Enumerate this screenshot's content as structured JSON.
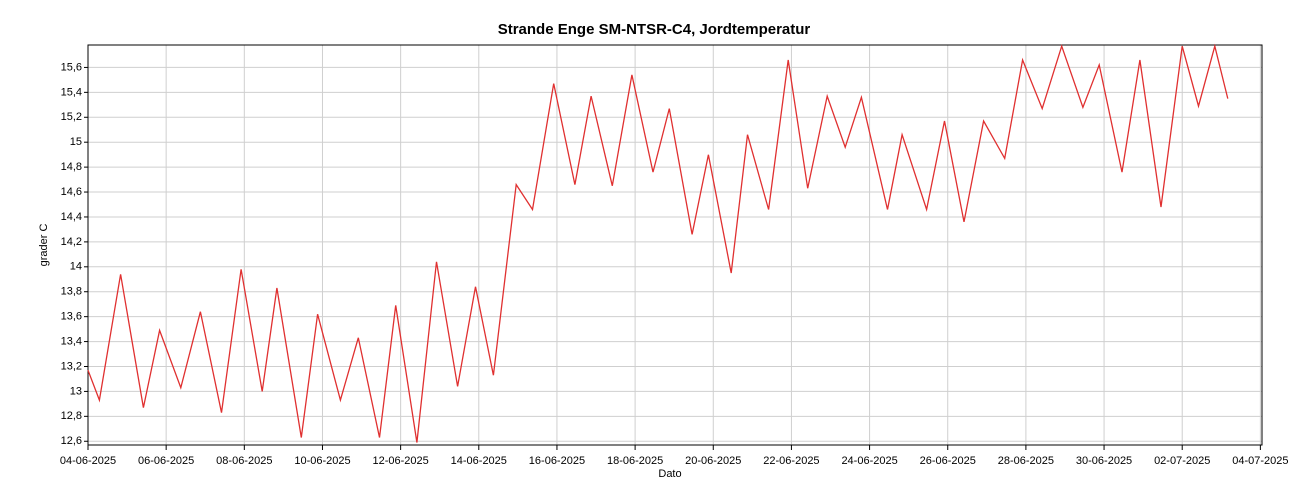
{
  "chart_data": {
    "type": "line",
    "title": "Strande Enge SM-NTSR-C4, Jordtemperatur",
    "xlabel": "Dato",
    "ylabel": "grader C",
    "x": [
      "2025-06-04T00:00",
      "2025-06-04T07:00",
      "2025-06-04T20:00",
      "2025-06-05T10:00",
      "2025-06-05T20:00",
      "2025-06-06T09:00",
      "2025-06-06T21:00",
      "2025-06-07T10:00",
      "2025-06-07T22:00",
      "2025-06-08T11:00",
      "2025-06-08T20:00",
      "2025-06-09T11:00",
      "2025-06-09T21:00",
      "2025-06-10T11:00",
      "2025-06-10T22:00",
      "2025-06-11T11:00",
      "2025-06-11T21:00",
      "2025-06-12T10:00",
      "2025-06-12T22:00",
      "2025-06-13T11:00",
      "2025-06-13T22:00",
      "2025-06-14T09:00",
      "2025-06-14T23:00",
      "2025-06-15T09:00",
      "2025-06-15T22:00",
      "2025-06-16T11:00",
      "2025-06-16T21:00",
      "2025-06-17T10:00",
      "2025-06-17T22:00",
      "2025-06-18T11:00",
      "2025-06-18T21:00",
      "2025-06-19T11:00",
      "2025-06-19T21:00",
      "2025-06-20T11:00",
      "2025-06-20T21:00",
      "2025-06-21T10:00",
      "2025-06-21T22:00",
      "2025-06-22T10:00",
      "2025-06-22T22:00",
      "2025-06-23T09:00",
      "2025-06-23T19:00",
      "2025-06-24T11:00",
      "2025-06-24T20:00",
      "2025-06-25T11:00",
      "2025-06-25T22:00",
      "2025-06-26T10:00",
      "2025-06-26T22:00",
      "2025-06-27T11:00",
      "2025-06-27T22:00",
      "2025-06-28T10:00",
      "2025-06-28T22:00",
      "2025-06-29T11:00",
      "2025-06-29T21:00",
      "2025-06-30T11:00",
      "2025-06-30T22:00",
      "2025-07-01T11:00",
      "2025-07-02T00:00",
      "2025-07-02T10:00",
      "2025-07-02T20:00",
      "2025-07-03T04:00"
    ],
    "series": [
      {
        "name": "Jordtemperatur",
        "color": "#e03030",
        "values": [
          13.17,
          12.93,
          13.94,
          12.87,
          13.49,
          13.03,
          13.64,
          12.83,
          13.98,
          13.0,
          13.83,
          12.63,
          13.62,
          12.93,
          13.43,
          12.63,
          13.69,
          12.59,
          14.04,
          13.04,
          13.84,
          13.13,
          14.66,
          14.46,
          15.47,
          14.66,
          15.37,
          14.65,
          15.54,
          14.76,
          15.27,
          14.26,
          14.9,
          13.95,
          15.06,
          14.46,
          15.66,
          14.63,
          15.37,
          14.96,
          15.36,
          14.46,
          15.06,
          14.46,
          15.17,
          14.36,
          15.17,
          14.87,
          15.66,
          15.27,
          15.77,
          15.28,
          15.62,
          14.76,
          15.66,
          14.48,
          15.77,
          15.29,
          15.77,
          15.35
        ]
      }
    ],
    "xlim": [
      "2025-06-04T00:00",
      "2025-07-04T01:00"
    ],
    "xticks": [
      {
        "value": "2025-06-04T00:00",
        "label": "04-06-2025"
      },
      {
        "value": "2025-06-06T00:00",
        "label": "06-06-2025"
      },
      {
        "value": "2025-06-08T00:00",
        "label": "08-06-2025"
      },
      {
        "value": "2025-06-10T00:00",
        "label": "10-06-2025"
      },
      {
        "value": "2025-06-12T00:00",
        "label": "12-06-2025"
      },
      {
        "value": "2025-06-14T00:00",
        "label": "14-06-2025"
      },
      {
        "value": "2025-06-16T00:00",
        "label": "16-06-2025"
      },
      {
        "value": "2025-06-18T00:00",
        "label": "18-06-2025"
      },
      {
        "value": "2025-06-20T00:00",
        "label": "20-06-2025"
      },
      {
        "value": "2025-06-22T00:00",
        "label": "22-06-2025"
      },
      {
        "value": "2025-06-24T00:00",
        "label": "24-06-2025"
      },
      {
        "value": "2025-06-26T00:00",
        "label": "26-06-2025"
      },
      {
        "value": "2025-06-28T00:00",
        "label": "28-06-2025"
      },
      {
        "value": "2025-06-30T00:00",
        "label": "30-06-2025"
      },
      {
        "value": "2025-07-02T00:00",
        "label": "02-07-2025"
      },
      {
        "value": "2025-07-04T00:00",
        "label": "04-07-2025"
      }
    ],
    "ylim": [
      12.57,
      15.78
    ],
    "yticks": [
      {
        "value": 12.6,
        "label": "12,6"
      },
      {
        "value": 12.8,
        "label": "12,8"
      },
      13,
      {
        "value": 13.2,
        "label": "13,2"
      },
      {
        "value": 13.4,
        "label": "13,4"
      },
      {
        "value": 13.6,
        "label": "13,6"
      },
      {
        "value": 13.8,
        "label": "13,8"
      },
      14,
      {
        "value": 14.2,
        "label": "14,2"
      },
      {
        "value": 14.4,
        "label": "14,4"
      },
      {
        "value": 14.6,
        "label": "14,6"
      },
      {
        "value": 14.8,
        "label": "14,8"
      },
      15,
      {
        "value": 15.2,
        "label": "15,2"
      },
      {
        "value": 15.4,
        "label": "15,4"
      },
      {
        "value": 15.6,
        "label": "15,6"
      }
    ],
    "grid": true
  }
}
